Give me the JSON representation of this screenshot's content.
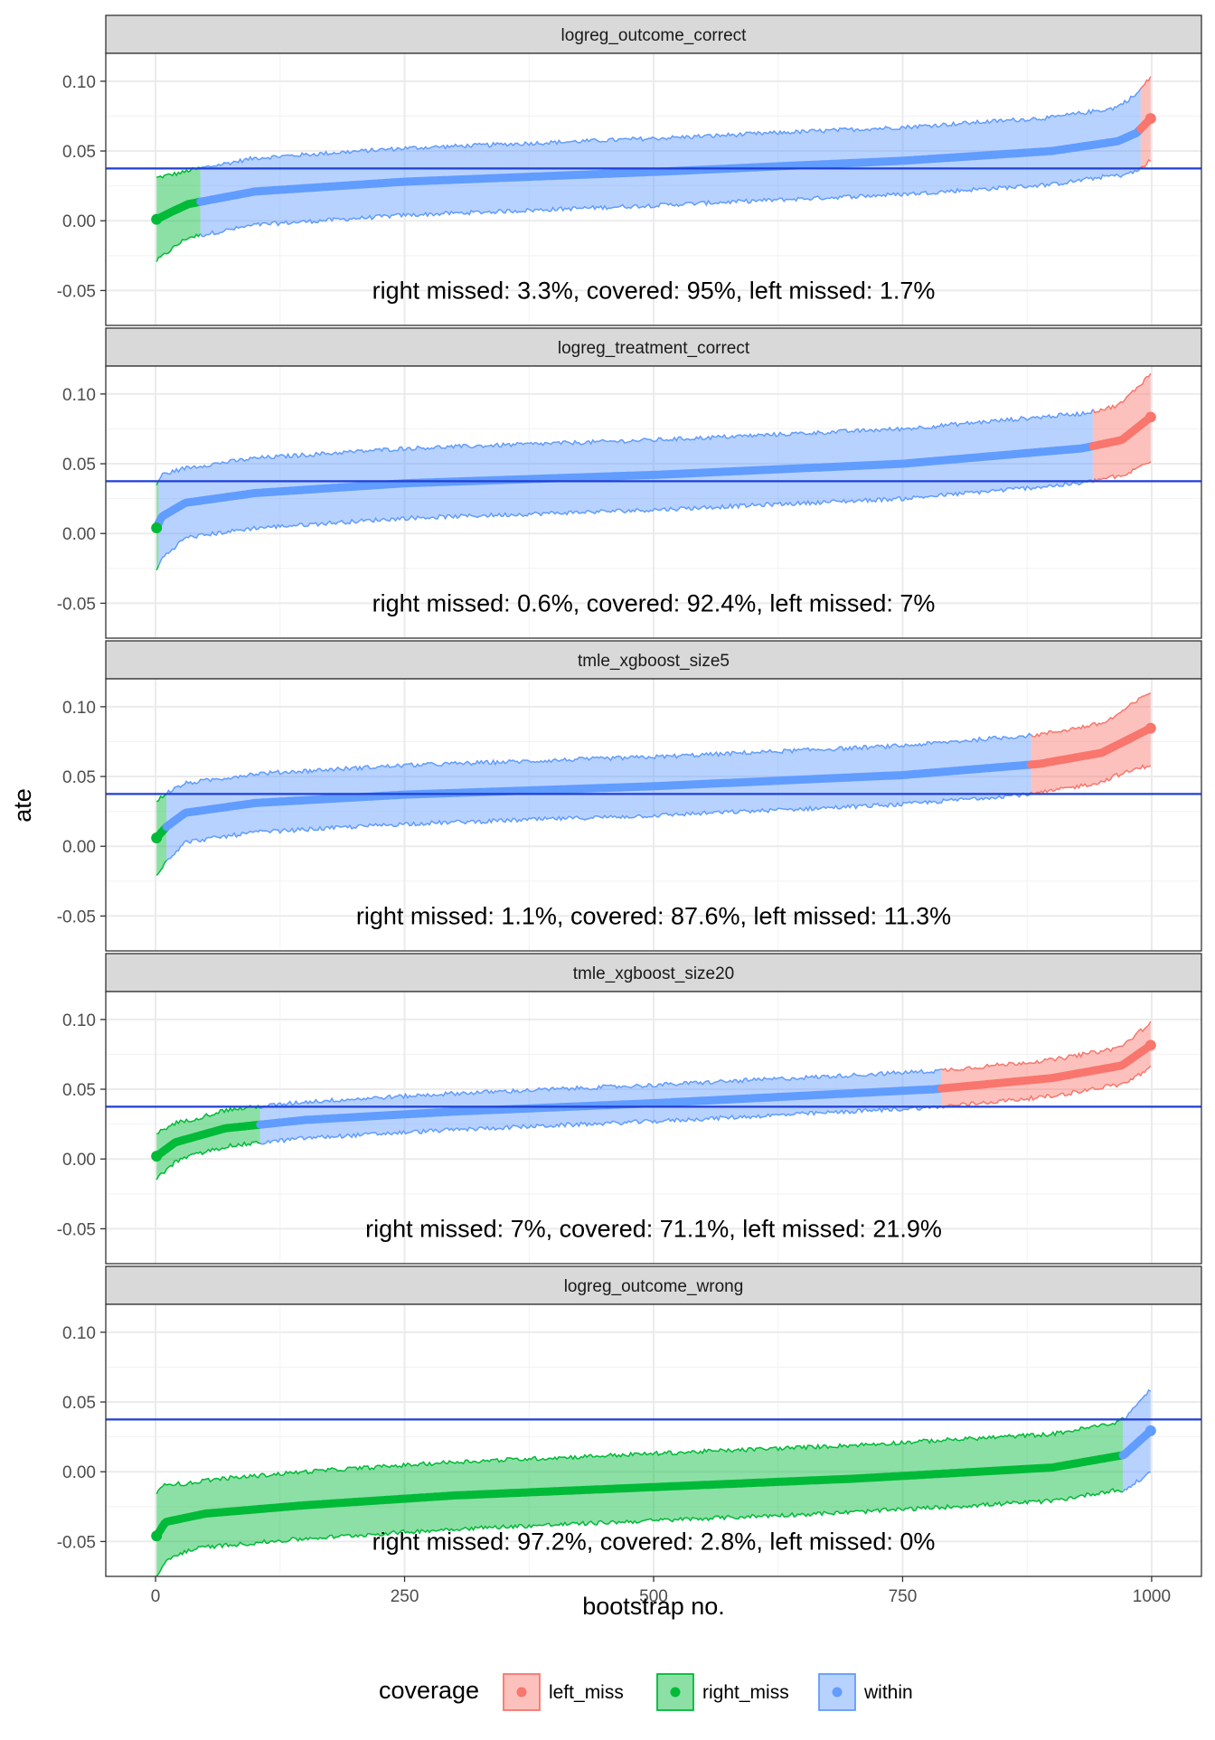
{
  "chart_data": {
    "type": "area",
    "xlabel": "bootstrap no.",
    "ylabel": "ate",
    "xlim": [
      -50,
      1050
    ],
    "ylim": [
      -0.075,
      0.12
    ],
    "x_ticks": [
      0,
      250,
      500,
      750,
      1000
    ],
    "x_tick_labels": [
      "0",
      "250",
      "500",
      "750",
      "1000"
    ],
    "y_ticks": [
      -0.05,
      0.0,
      0.05,
      0.1
    ],
    "y_tick_labels": [
      "-0.05",
      "0.00",
      "0.05",
      "0.10"
    ],
    "reference_line": 0.0375,
    "legend": {
      "title": "coverage",
      "position": "bottom",
      "items": [
        {
          "key": "left_miss",
          "label": "left_miss",
          "color": "#F8766D"
        },
        {
          "key": "right_miss",
          "label": "right_miss",
          "color": "#00BA38"
        },
        {
          "key": "within",
          "label": "within",
          "color": "#619CFF"
        }
      ]
    },
    "colors": {
      "left_miss": "#F8766D",
      "right_miss": "#00BA38",
      "within": "#619CFF",
      "reference_line": "#1F3FD6"
    },
    "panels": [
      {
        "title": "logreg_outcome_correct",
        "annotation": "right missed: 3.3%, covered: 95%, left missed: 1.7%",
        "right_missed_pct": 3.3,
        "covered_pct": 95,
        "left missed_pct": 1.7,
        "estimate_curve": [
          [
            1,
            0.001
          ],
          [
            15,
            0.006
          ],
          [
            33,
            0.012
          ],
          [
            100,
            0.021
          ],
          [
            250,
            0.028
          ],
          [
            500,
            0.035
          ],
          [
            750,
            0.043
          ],
          [
            900,
            0.05
          ],
          [
            966,
            0.057
          ],
          [
            985,
            0.063
          ],
          [
            1000,
            0.074
          ]
        ],
        "half_width": 0.024
      },
      {
        "title": "logreg_treatment_correct",
        "annotation": "right missed: 0.6%, covered: 92.4%, left missed: 7%",
        "right_missed_pct": 0.6,
        "covered_pct": 92.4,
        "left missed_pct": 7,
        "estimate_curve": [
          [
            1,
            0.004
          ],
          [
            6,
            0.012
          ],
          [
            30,
            0.022
          ],
          [
            100,
            0.029
          ],
          [
            250,
            0.036
          ],
          [
            500,
            0.042
          ],
          [
            750,
            0.05
          ],
          [
            930,
            0.061
          ],
          [
            970,
            0.067
          ],
          [
            1000,
            0.084
          ]
        ],
        "half_width": 0.025
      },
      {
        "title": "tmle_xgboost_size5",
        "annotation": "right missed: 1.1%, covered: 87.6%, left missed: 11.3%",
        "right_missed_pct": 1.1,
        "covered_pct": 87.6,
        "left missed_pct": 11.3,
        "estimate_curve": [
          [
            1,
            0.006
          ],
          [
            11,
            0.014
          ],
          [
            30,
            0.024
          ],
          [
            100,
            0.031
          ],
          [
            250,
            0.037
          ],
          [
            500,
            0.043
          ],
          [
            750,
            0.051
          ],
          [
            887,
            0.059
          ],
          [
            950,
            0.067
          ],
          [
            1000,
            0.085
          ]
        ],
        "half_width": 0.021
      },
      {
        "title": "tmle_xgboost_size20",
        "annotation": "right missed: 7%, covered: 71.1%, left missed: 21.9%",
        "right_missed_pct": 7,
        "covered_pct": 71.1,
        "left missed_pct": 21.9,
        "estimate_curve": [
          [
            1,
            0.002
          ],
          [
            20,
            0.012
          ],
          [
            70,
            0.022
          ],
          [
            150,
            0.028
          ],
          [
            300,
            0.034
          ],
          [
            500,
            0.04
          ],
          [
            781,
            0.05
          ],
          [
            900,
            0.058
          ],
          [
            970,
            0.067
          ],
          [
            1000,
            0.082
          ]
        ],
        "half_width": 0.013
      },
      {
        "title": "logreg_outcome_wrong",
        "annotation": "right missed: 97.2%, covered: 2.8%, left missed: 0%",
        "right_missed_pct": 97.2,
        "covered_pct": 2.8,
        "left missed_pct": 0,
        "estimate_curve": [
          [
            1,
            -0.046
          ],
          [
            10,
            -0.036
          ],
          [
            50,
            -0.03
          ],
          [
            150,
            -0.024
          ],
          [
            300,
            -0.017
          ],
          [
            500,
            -0.011
          ],
          [
            700,
            -0.005
          ],
          [
            900,
            0.003
          ],
          [
            972,
            0.012
          ],
          [
            1000,
            0.03
          ]
        ],
        "half_width": 0.024
      }
    ]
  }
}
